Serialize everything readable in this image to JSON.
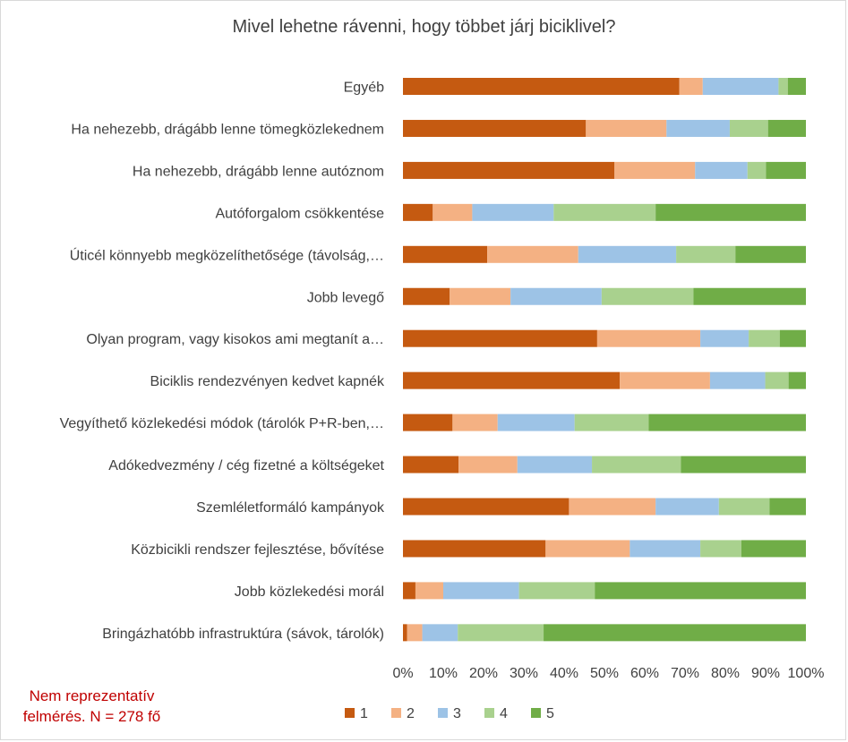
{
  "chart_data": {
    "type": "bar",
    "orientation": "horizontal",
    "stacked": "percent",
    "title": "Mivel lehetne rávenni, hogy többet járj biciklivel?",
    "xlabel": "",
    "ylabel": "",
    "xlim": [
      0,
      100
    ],
    "x_ticks": [
      "0%",
      "10%",
      "20%",
      "30%",
      "40%",
      "50%",
      "60%",
      "70%",
      "80%",
      "90%",
      "100%"
    ],
    "grid": false,
    "legend_position": "bottom",
    "categories": [
      "Egyéb",
      "Ha nehezebb, drágább lenne tömegközlekednem",
      "Ha nehezebb, drágább lenne autóznom",
      "Autóforgalom csökkentése",
      "Úticél könnyebb megközelíthetősége (távolság,…",
      "Jobb levegő",
      "Olyan program, vagy kisokos ami megtanít a…",
      "Biciklis rendezvényen kedvet kapnék",
      "Vegyíthető közlekedési módok (tárolók P+R-ben,…",
      "Adókedvezmény / cég fizetné a költségeket",
      "Szemléletformáló kampányok",
      "Közbicikli rendszer fejlesztése, bővítése",
      "Jobb közlekedési morál",
      "Bringázhatóbb infrastruktúra (sávok, tárolók)"
    ],
    "series": [
      {
        "name": "1",
        "color": "#c55a11",
        "values": [
          68.6,
          45.4,
          52.5,
          7.4,
          20.9,
          11.6,
          48.2,
          53.8,
          12.3,
          13.8,
          41.2,
          35.4,
          3.1,
          1.0
        ]
      },
      {
        "name": "2",
        "color": "#f4b183",
        "values": [
          5.8,
          20.0,
          20.0,
          9.8,
          22.6,
          15.1,
          25.6,
          22.4,
          11.2,
          14.6,
          21.5,
          20.9,
          6.9,
          3.8
        ]
      },
      {
        "name": "3",
        "color": "#9dc3e6",
        "values": [
          18.8,
          15.7,
          13.0,
          20.2,
          24.3,
          22.6,
          12.0,
          13.7,
          19.1,
          18.5,
          15.7,
          17.5,
          18.8,
          8.8
        ]
      },
      {
        "name": "4",
        "color": "#a9d18e",
        "values": [
          2.3,
          9.5,
          4.6,
          25.3,
          14.7,
          22.8,
          7.7,
          5.8,
          18.4,
          22.1,
          12.6,
          10.2,
          18.8,
          21.3
        ]
      },
      {
        "name": "5",
        "color": "#70ad47",
        "values": [
          4.5,
          9.4,
          9.9,
          37.3,
          17.5,
          27.9,
          6.5,
          4.3,
          39.0,
          31.0,
          9.0,
          16.0,
          52.4,
          65.1
        ]
      }
    ]
  },
  "note": {
    "line1": "Nem reprezentatív",
    "line2": "felmérés. N = 278 fő"
  }
}
